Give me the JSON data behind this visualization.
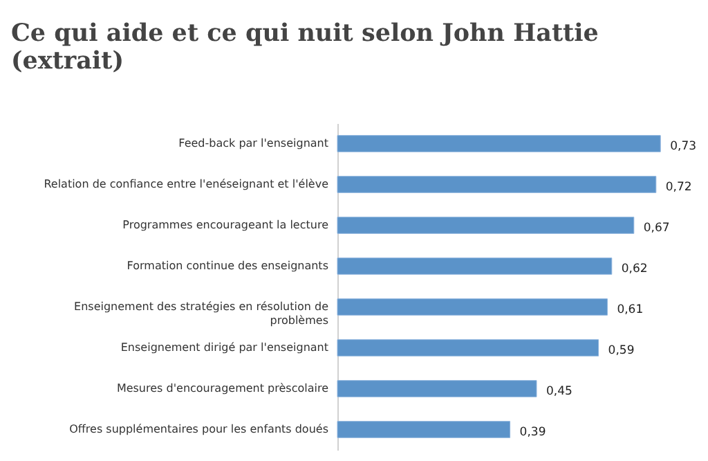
{
  "chart_data": {
    "type": "bar",
    "orientation": "horizontal",
    "title": "Ce qui aide et ce qui nuit selon John Hattie (extrait)",
    "categories": [
      "Feed-back par l'enseignant",
      "Relation de confiance entre l'enéseignant et l'élève",
      "Programmes encourageant la lecture",
      "Formation continue des enseignants",
      "Enseignement des stratégies en résolution de problèmes",
      "Enseignement dirigé par l'enseignant",
      "Mesures d'encouragement prèscolaire",
      "Offres supplémentaires pour les enfants doués"
    ],
    "values": [
      0.73,
      0.72,
      0.67,
      0.62,
      0.61,
      0.59,
      0.45,
      0.39
    ],
    "value_labels": [
      "0,73",
      "0,72",
      "0,67",
      "0,62",
      "0,61",
      "0,59",
      "0,45",
      "0,39"
    ],
    "color": "#5b93c9",
    "tick_labels": "y"
  }
}
